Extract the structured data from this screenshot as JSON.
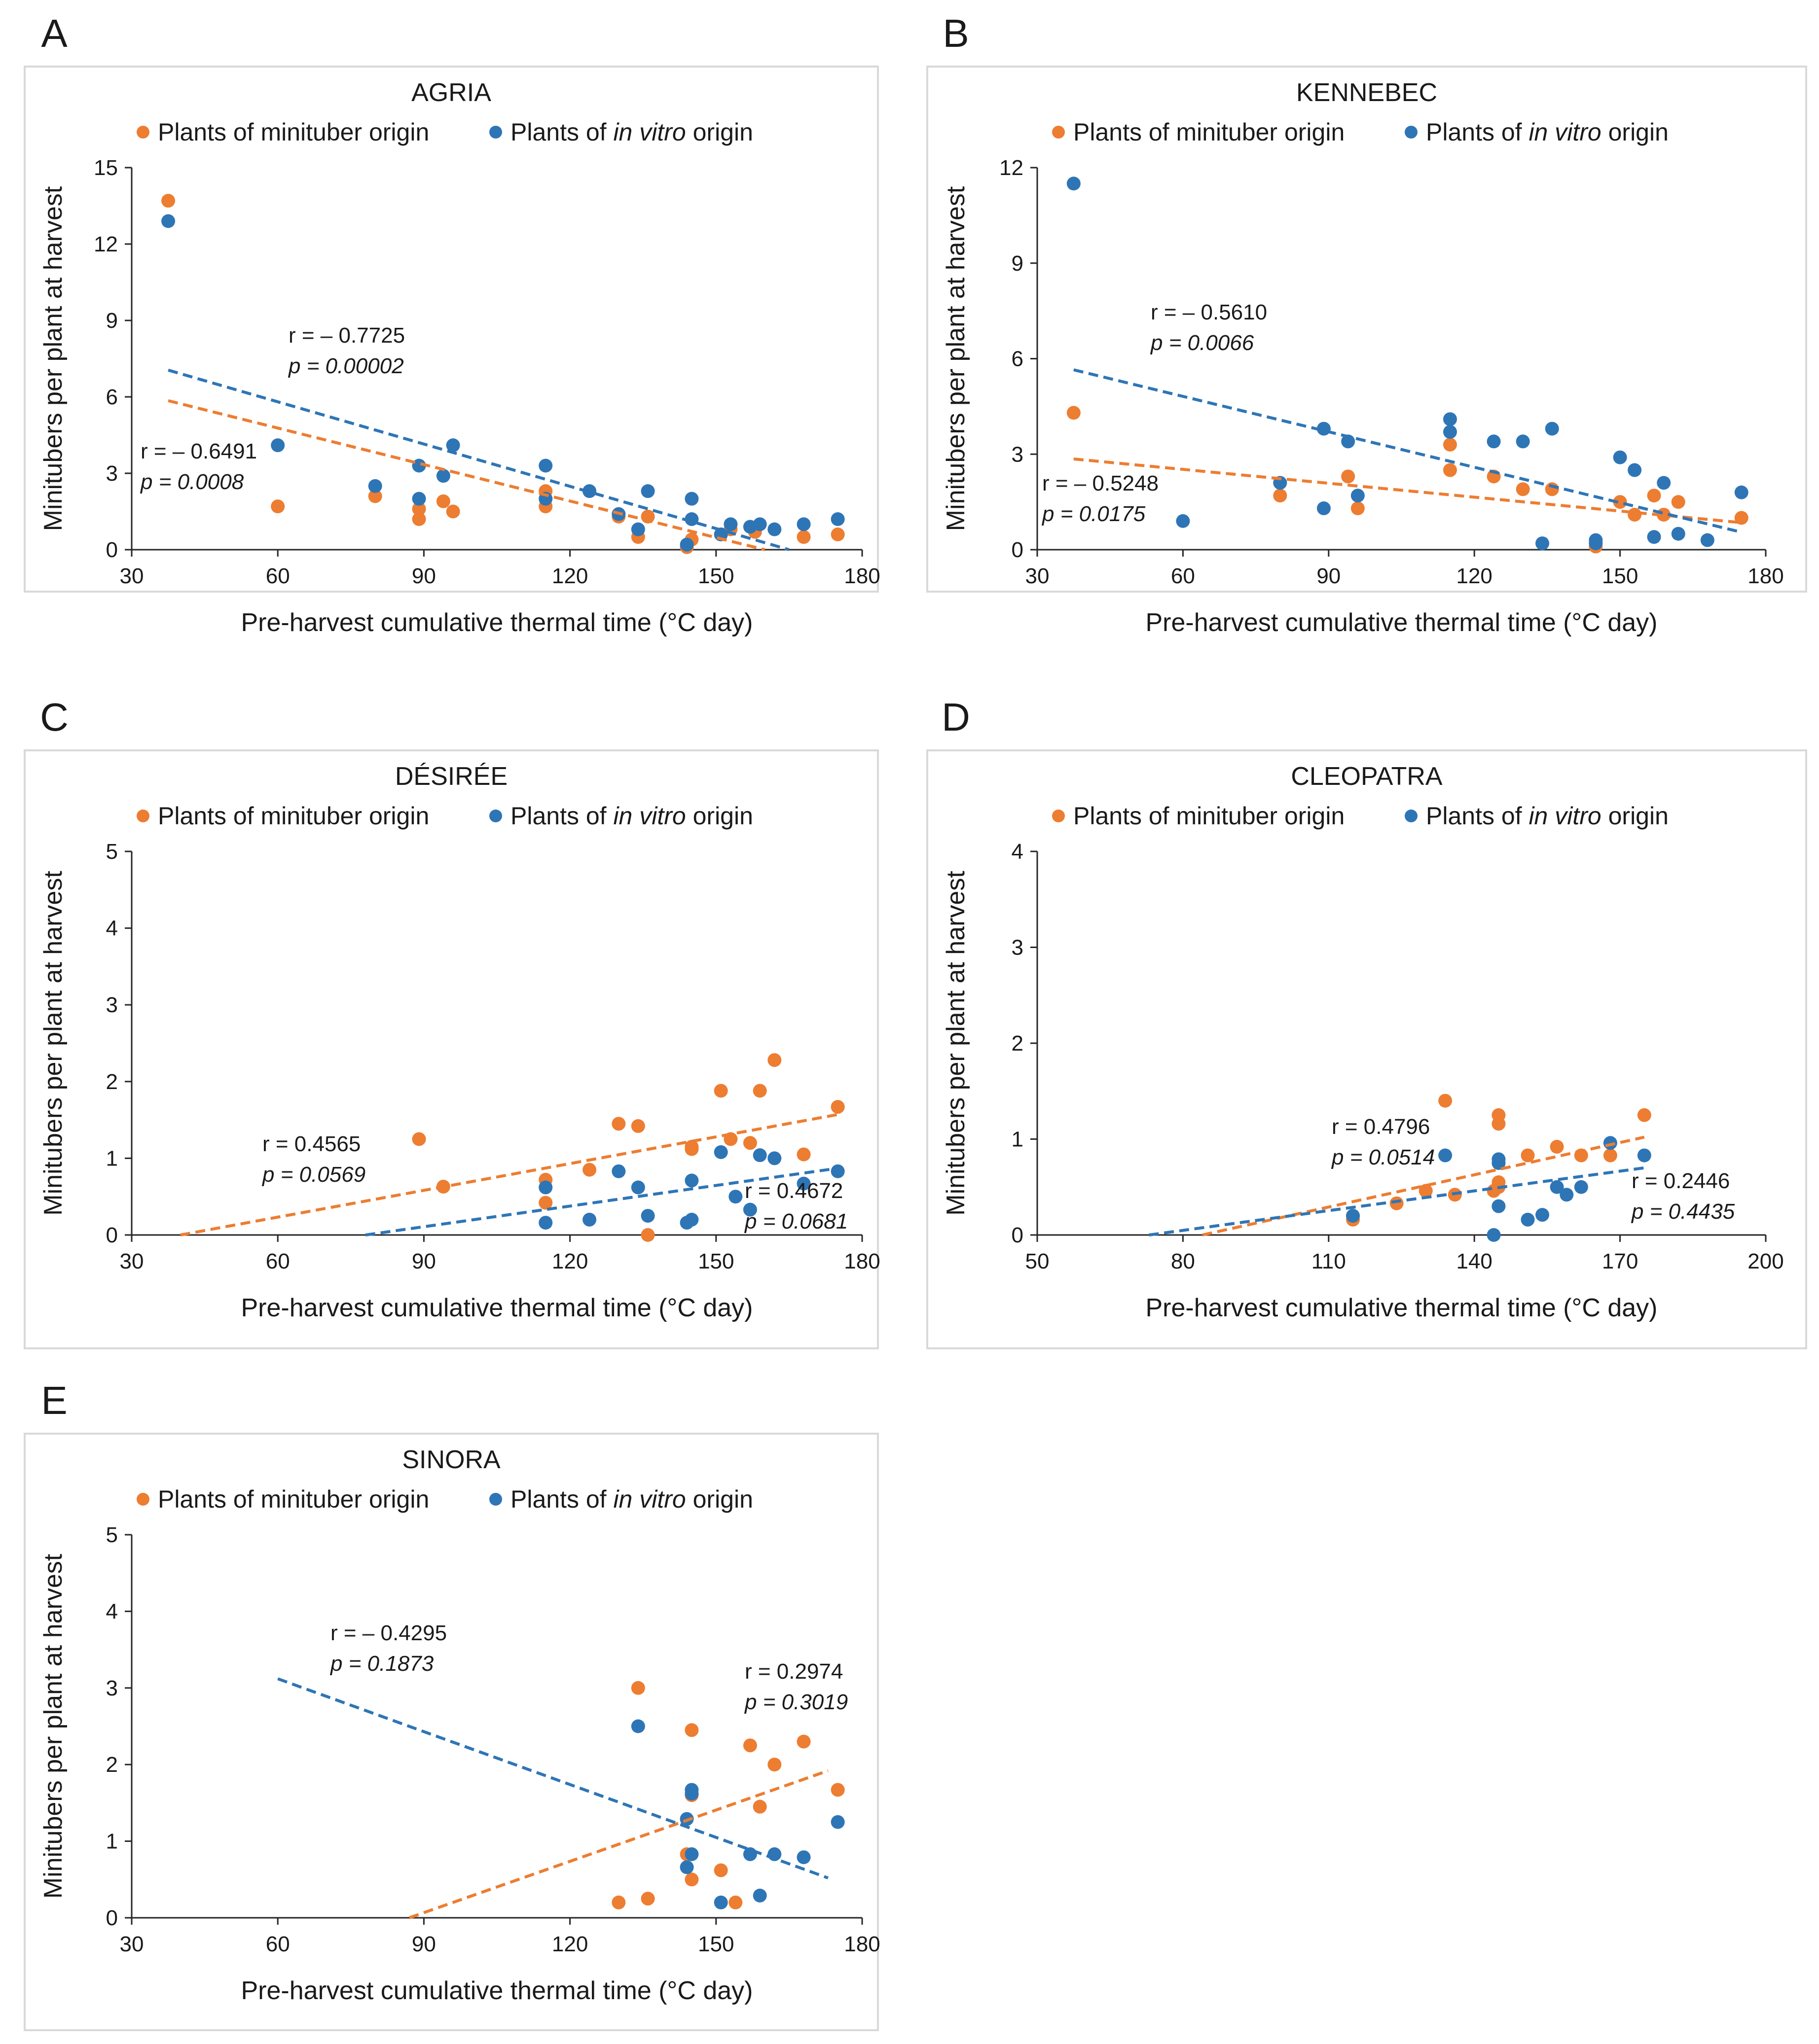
{
  "colors": {
    "minituber": "#ED7D31",
    "invitro": "#2E75B6",
    "axis": "#262626",
    "text": "#1a1a1a",
    "frame": "#D9D9D9"
  },
  "chart_data": [
    {
      "panel": "A",
      "type": "scatter",
      "title": "AGRIA",
      "xlabel": "Pre-harvest cumulative thermal time (°C day)",
      "ylabel": "Minitubers per plant at harvest",
      "xlim": [
        30,
        180
      ],
      "ylim": [
        0,
        15
      ],
      "xticks": [
        "30",
        "60",
        "90",
        "120",
        "150",
        "180"
      ],
      "yticks": [
        "0",
        "3",
        "6",
        "9",
        "12",
        "15"
      ],
      "legend_position": "top",
      "legend": {
        "minituber": "Plants of minituber origin",
        "invitro_pre": "Plants of ",
        "invitro_em": "in vitro",
        "invitro_post": " origin"
      },
      "series": [
        {
          "name": "Plants of minituber origin",
          "key": "minituber",
          "x": [
            37.5,
            60,
            80,
            89,
            89,
            94,
            96,
            115,
            115,
            130,
            134,
            136,
            144,
            145,
            151,
            153,
            158,
            168,
            175
          ],
          "y": [
            13.7,
            1.7,
            2.1,
            1.6,
            1.2,
            1.9,
            1.5,
            2.3,
            1.7,
            1.3,
            0.5,
            1.3,
            0.1,
            0.4,
            0.6,
            0.8,
            0.7,
            0.5,
            0.6
          ],
          "trend": [
            [
              37.5,
              5.85
            ],
            [
              160,
              0
            ]
          ],
          "r": "r = – 0.6491",
          "p": "p = 0.0008"
        },
        {
          "name": "Plants of in vitro origin",
          "key": "invitro",
          "x": [
            37.5,
            60,
            80,
            89,
            89,
            94,
            96,
            115,
            115,
            124,
            130,
            134,
            136,
            144,
            145,
            145,
            151,
            153,
            157,
            159,
            162,
            168,
            175
          ],
          "y": [
            12.9,
            4.1,
            2.5,
            3.3,
            2.0,
            2.9,
            4.1,
            3.3,
            2.0,
            2.3,
            1.4,
            0.8,
            2.3,
            0.2,
            1.2,
            2.0,
            0.6,
            1.0,
            0.9,
            1.0,
            0.8,
            1.0,
            1.2
          ],
          "trend": [
            [
              37.5,
              7.05
            ],
            [
              165,
              0
            ]
          ],
          "r": "r = – 0.7725",
          "p": "p = 0.00002"
        }
      ]
    },
    {
      "panel": "B",
      "type": "scatter",
      "title": "KENNEBEC",
      "xlabel": "Pre-harvest cumulative thermal time (°C day)",
      "ylabel": "Minitubers per plant at harvest",
      "xlim": [
        30,
        180
      ],
      "ylim": [
        0,
        12
      ],
      "xticks": [
        "30",
        "60",
        "90",
        "120",
        "150",
        "180"
      ],
      "yticks": [
        "0",
        "3",
        "6",
        "9",
        "12"
      ],
      "legend_position": "top",
      "legend": {
        "minituber": "Plants of minituber origin",
        "invitro_pre": "Plants of ",
        "invitro_em": "in vitro",
        "invitro_post": " origin"
      },
      "series": [
        {
          "name": "Plants of minituber origin",
          "key": "minituber",
          "x": [
            37.5,
            80,
            94,
            96,
            115,
            115,
            124,
            130,
            136,
            145,
            150,
            153,
            157,
            159,
            162,
            175
          ],
          "y": [
            4.3,
            1.7,
            2.3,
            1.3,
            3.3,
            2.5,
            2.3,
            1.9,
            1.9,
            0.1,
            1.5,
            1.1,
            1.7,
            1.1,
            1.5,
            1.0
          ],
          "trend": [
            [
              37.5,
              2.85
            ],
            [
              175,
              0.85
            ]
          ],
          "r": "r = – 0.5248",
          "p": "p = 0.0175"
        },
        {
          "name": "Plants of in vitro origin",
          "key": "invitro",
          "x": [
            37.5,
            60,
            80,
            89,
            89,
            94,
            96,
            115,
            115,
            124,
            130,
            134,
            136,
            145,
            145,
            150,
            153,
            157,
            159,
            162,
            168,
            175
          ],
          "y": [
            11.5,
            0.9,
            2.1,
            3.8,
            1.3,
            3.4,
            1.7,
            4.1,
            3.7,
            3.4,
            3.4,
            0.2,
            3.8,
            0.2,
            0.3,
            2.9,
            2.5,
            0.4,
            2.1,
            0.5,
            0.3,
            1.8
          ],
          "trend": [
            [
              37.5,
              5.65
            ],
            [
              175,
              0.55
            ]
          ],
          "r": "r = – 0.5610",
          "p": "p = 0.0066"
        }
      ]
    },
    {
      "panel": "C",
      "type": "scatter",
      "title": "DÉSIRÉE",
      "xlabel": "Pre-harvest cumulative thermal time (°C day)",
      "ylabel": "Minitubers per plant at harvest",
      "xlim": [
        30,
        180
      ],
      "ylim": [
        0,
        5
      ],
      "xticks": [
        "30",
        "60",
        "90",
        "120",
        "150",
        "180"
      ],
      "yticks": [
        "0",
        "1",
        "2",
        "3",
        "4",
        "5"
      ],
      "legend_position": "top",
      "legend": {
        "minituber": "Plants of minituber origin",
        "invitro_pre": "Plants of ",
        "invitro_em": "in vitro",
        "invitro_post": " origin"
      },
      "series": [
        {
          "name": "Plants of minituber origin",
          "key": "minituber",
          "x": [
            89,
            94,
            115,
            115,
            124,
            130,
            134,
            136,
            145,
            145,
            151,
            153,
            157,
            159,
            162,
            168,
            175
          ],
          "y": [
            1.25,
            0.63,
            0.72,
            0.42,
            0.85,
            1.45,
            1.42,
            0.0,
            1.12,
            1.15,
            1.88,
            1.25,
            1.2,
            1.88,
            2.28,
            1.05,
            1.67
          ],
          "trend": [
            [
              40,
              0
            ],
            [
              175,
              1.57
            ]
          ],
          "r": "r = 0.4565",
          "p": "p = 0.0569"
        },
        {
          "name": "Plants of in vitro origin",
          "key": "invitro",
          "x": [
            115,
            115,
            124,
            130,
            134,
            136,
            144,
            145,
            145,
            151,
            154,
            157,
            159,
            162,
            168,
            175
          ],
          "y": [
            0.16,
            0.62,
            0.2,
            0.83,
            0.62,
            0.25,
            0.16,
            0.2,
            0.71,
            1.08,
            0.5,
            0.33,
            1.04,
            1.0,
            0.67,
            0.83
          ],
          "trend": [
            [
              78,
              0
            ],
            [
              175,
              0.87
            ]
          ],
          "r": "r = 0.4672",
          "p": "p = 0.0681"
        }
      ]
    },
    {
      "panel": "D",
      "type": "scatter",
      "title": "CLEOPATRA",
      "xlabel": "Pre-harvest cumulative thermal time (°C day)",
      "ylabel": "Minitubers per plant at harvest",
      "xlim": [
        50,
        200
      ],
      "ylim": [
        0,
        4
      ],
      "xticks": [
        "50",
        "80",
        "110",
        "140",
        "170",
        "200"
      ],
      "yticks": [
        "0",
        "1",
        "2",
        "3",
        "4"
      ],
      "legend_position": "top",
      "legend": {
        "minituber": "Plants of minituber origin",
        "invitro_pre": "Plants of ",
        "invitro_em": "in vitro",
        "invitro_post": " origin"
      },
      "series": [
        {
          "name": "Plants of minituber origin",
          "key": "minituber",
          "x": [
            115,
            115,
            124,
            130,
            134,
            136,
            144,
            145,
            145,
            145,
            145,
            151,
            157,
            162,
            168,
            175
          ],
          "y": [
            0.2,
            0.16,
            0.33,
            0.46,
            1.4,
            0.42,
            0.46,
            1.16,
            1.25,
            0.55,
            0.5,
            0.83,
            0.92,
            0.83,
            0.83,
            1.25
          ],
          "trend": [
            [
              84,
              0
            ],
            [
              175,
              1.02
            ]
          ],
          "r": "r = 0.4796",
          "p": "p = 0.0514"
        },
        {
          "name": "Plants of in vitro origin",
          "key": "invitro",
          "x": [
            115,
            134,
            144,
            145,
            145,
            145,
            151,
            154,
            157,
            159,
            162,
            168,
            175
          ],
          "y": [
            0.2,
            0.83,
            0.0,
            0.3,
            0.75,
            0.79,
            0.16,
            0.21,
            0.5,
            0.42,
            0.5,
            0.96,
            0.83
          ],
          "trend": [
            [
              73,
              0
            ],
            [
              175,
              0.7
            ]
          ],
          "r": "r = 0.2446",
          "p": "p = 0.4435"
        }
      ]
    },
    {
      "panel": "E",
      "type": "scatter",
      "title": "SINORA",
      "xlabel": "Pre-harvest cumulative thermal time (°C day)",
      "ylabel": "Minitubers per plant at harvest",
      "xlim": [
        30,
        180
      ],
      "ylim": [
        0,
        5
      ],
      "xticks": [
        "30",
        "60",
        "90",
        "120",
        "150",
        "180"
      ],
      "yticks": [
        "0",
        "1",
        "2",
        "3",
        "4",
        "5"
      ],
      "legend_position": "top",
      "legend": {
        "minituber": "Plants of minituber origin",
        "invitro_pre": "Plants of ",
        "invitro_em": "in vitro",
        "invitro_post": " origin"
      },
      "series": [
        {
          "name": "Plants of minituber origin",
          "key": "minituber",
          "x": [
            130,
            134,
            136,
            144,
            145,
            145,
            145,
            151,
            154,
            157,
            159,
            162,
            168,
            175
          ],
          "y": [
            0.2,
            3.0,
            0.25,
            0.83,
            1.6,
            2.45,
            0.5,
            0.62,
            0.2,
            2.25,
            1.45,
            2.0,
            2.3,
            1.67
          ],
          "trend": [
            [
              87,
              0
            ],
            [
              173,
              1.92
            ]
          ],
          "r": "r = 0.2974",
          "p": "p = 0.3019"
        },
        {
          "name": "Plants of in vitro origin",
          "key": "invitro",
          "x": [
            134,
            144,
            144,
            145,
            145,
            145,
            151,
            157,
            159,
            162,
            168,
            175
          ],
          "y": [
            2.5,
            1.29,
            0.66,
            1.67,
            1.62,
            0.83,
            0.2,
            0.83,
            0.29,
            0.83,
            0.79,
            1.25
          ],
          "trend": [
            [
              60,
              3.12
            ],
            [
              173,
              0.52
            ]
          ],
          "r": "r = – 0.4295",
          "p": "p = 0.1873"
        }
      ]
    }
  ]
}
